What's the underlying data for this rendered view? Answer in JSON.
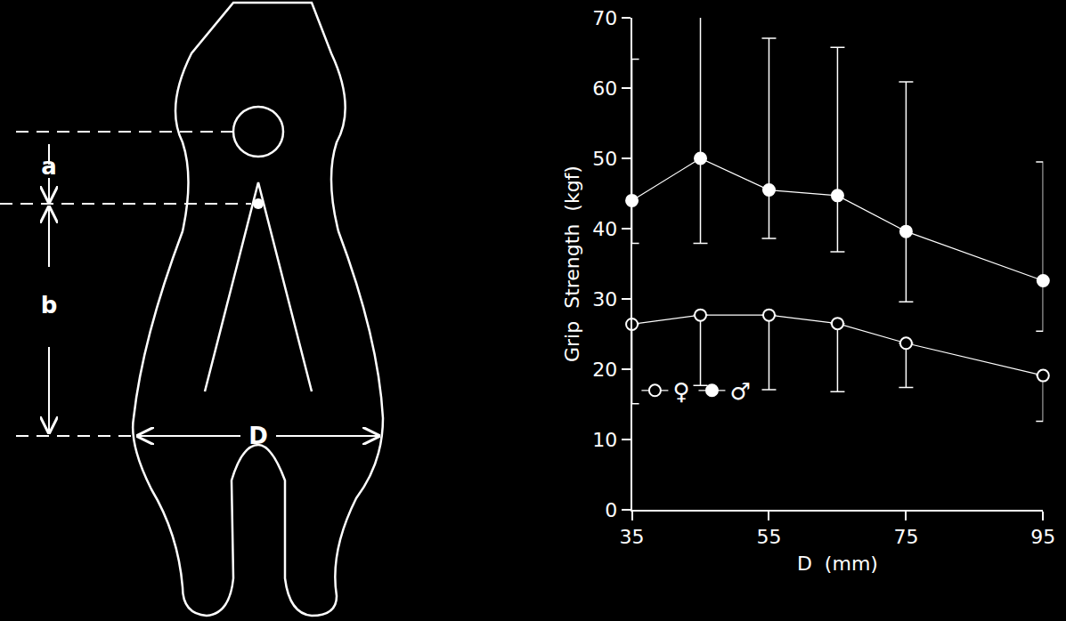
{
  "chart_data": {
    "type": "line",
    "x": [
      35,
      45,
      55,
      65,
      75,
      95
    ],
    "xlabel": "D  (mm)",
    "ylabel": "Grip  Strength  (kgf)",
    "xlim": [
      35,
      95
    ],
    "xticks": [
      35,
      55,
      75,
      95
    ],
    "ylim": [
      0,
      70
    ],
    "yticks": [
      0,
      10,
      20,
      30,
      40,
      50,
      60,
      70
    ],
    "grid": false,
    "legend": "lower left",
    "series": [
      {
        "name": "♀",
        "color": "#ffffff",
        "marker": "open-circle",
        "values": [
          26.4,
          27.7,
          27.7,
          26.5,
          23.7,
          19.1
        ],
        "error_low": [
          15.1,
          17.7,
          17.1,
          16.8,
          17.4,
          12.6
        ]
      },
      {
        "name": "♂",
        "color": "#ffffff",
        "marker": "circle",
        "values": [
          44.0,
          50.0,
          45.5,
          44.7,
          39.6,
          32.6
        ],
        "error_high": [
          64.1,
          71.8,
          67.1,
          65.8,
          60.9,
          49.5
        ],
        "error_low": [
          37.9,
          37.9,
          38.6,
          36.7,
          29.6,
          25.4
        ]
      }
    ]
  },
  "diagram": {
    "labels": {
      "a": "a",
      "b": "b",
      "D": "D"
    }
  }
}
